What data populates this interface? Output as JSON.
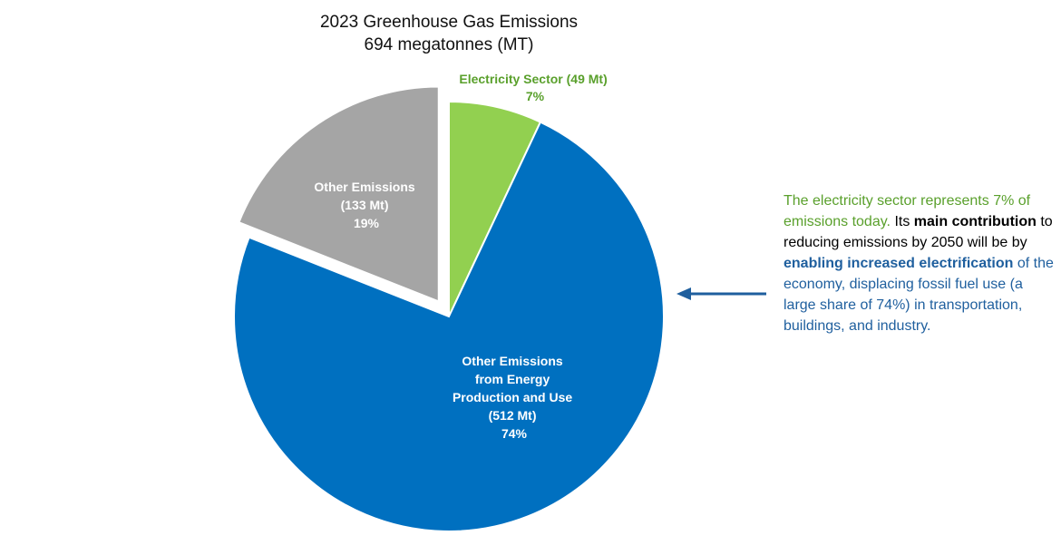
{
  "chart_data": {
    "type": "pie",
    "title": "2023 Greenhouse Gas Emissions",
    "subtitle": "694 megatonnes (MT)",
    "slices": [
      {
        "label": "Electricity Sector (49 Mt)",
        "value_mt": 49,
        "percent": 7,
        "percent_text": "7%",
        "color": "#92d050",
        "exploded": false
      },
      {
        "label_lines": [
          "Other Emissions",
          "from Energy",
          "Production and Use",
          "(512 Mt)"
        ],
        "value_mt": 512,
        "percent": 74,
        "percent_text": "74%",
        "color": "#0070c0",
        "exploded": false
      },
      {
        "label_lines": [
          "Other Emissions",
          "(133 Mt)"
        ],
        "value_mt": 133,
        "percent": 19,
        "percent_text": "19%",
        "color": "#a5a5a5",
        "exploded": true
      }
    ]
  },
  "callout": {
    "green_text": "The electricity sector represents 7% of emissions today.",
    "black_text_1": "Its ",
    "black_bold": "main contribution",
    "black_text_2": " to reducing emissions by 2050 will be by ",
    "blue_bold": "enabling increased electrification",
    "blue_text": " of the economy, displacing fossil fuel use (a large share of 74%) in transportation, buildings, and industry.",
    "green_color": "#5aa02c",
    "blue_color": "#1f5f9e"
  },
  "arrow": {
    "color": "#1f5f9e",
    "direction": "left"
  }
}
